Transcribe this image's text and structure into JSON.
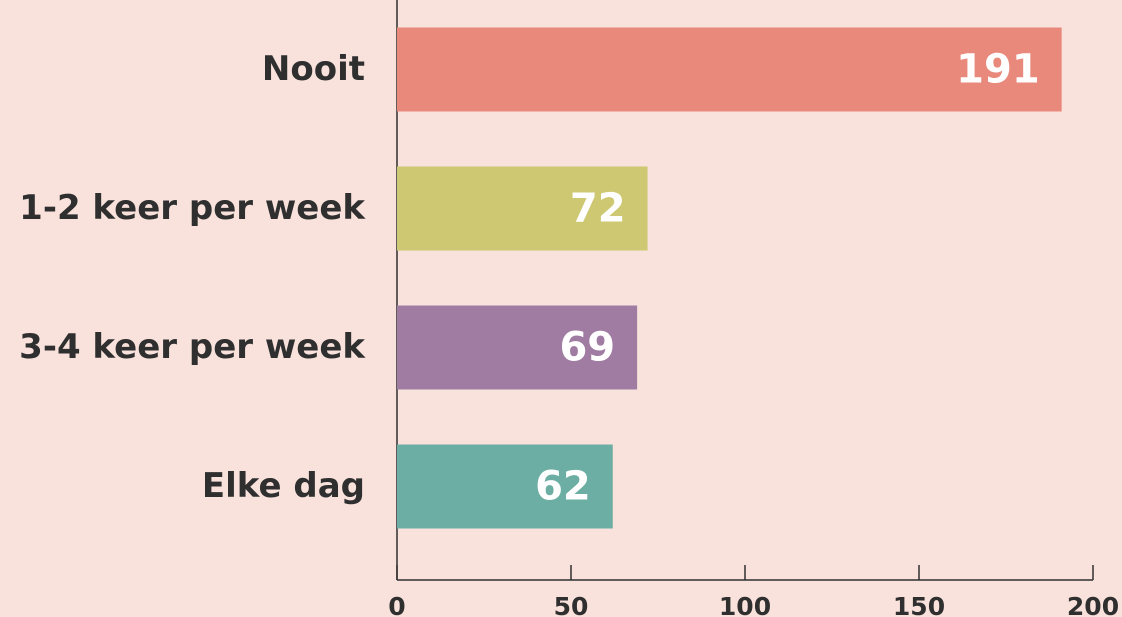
{
  "chart_data": {
    "type": "bar",
    "orientation": "horizontal",
    "categories": [
      "Nooit",
      "1-2 keer per week",
      "3-4 keer per week",
      "Elke dag"
    ],
    "values": [
      191,
      72,
      69,
      62
    ],
    "colors": [
      "#e9897c",
      "#cec872",
      "#a07ca3",
      "#6caea3"
    ],
    "xlim": [
      0,
      200
    ],
    "xticks": [
      0,
      50,
      100,
      150,
      200
    ]
  }
}
